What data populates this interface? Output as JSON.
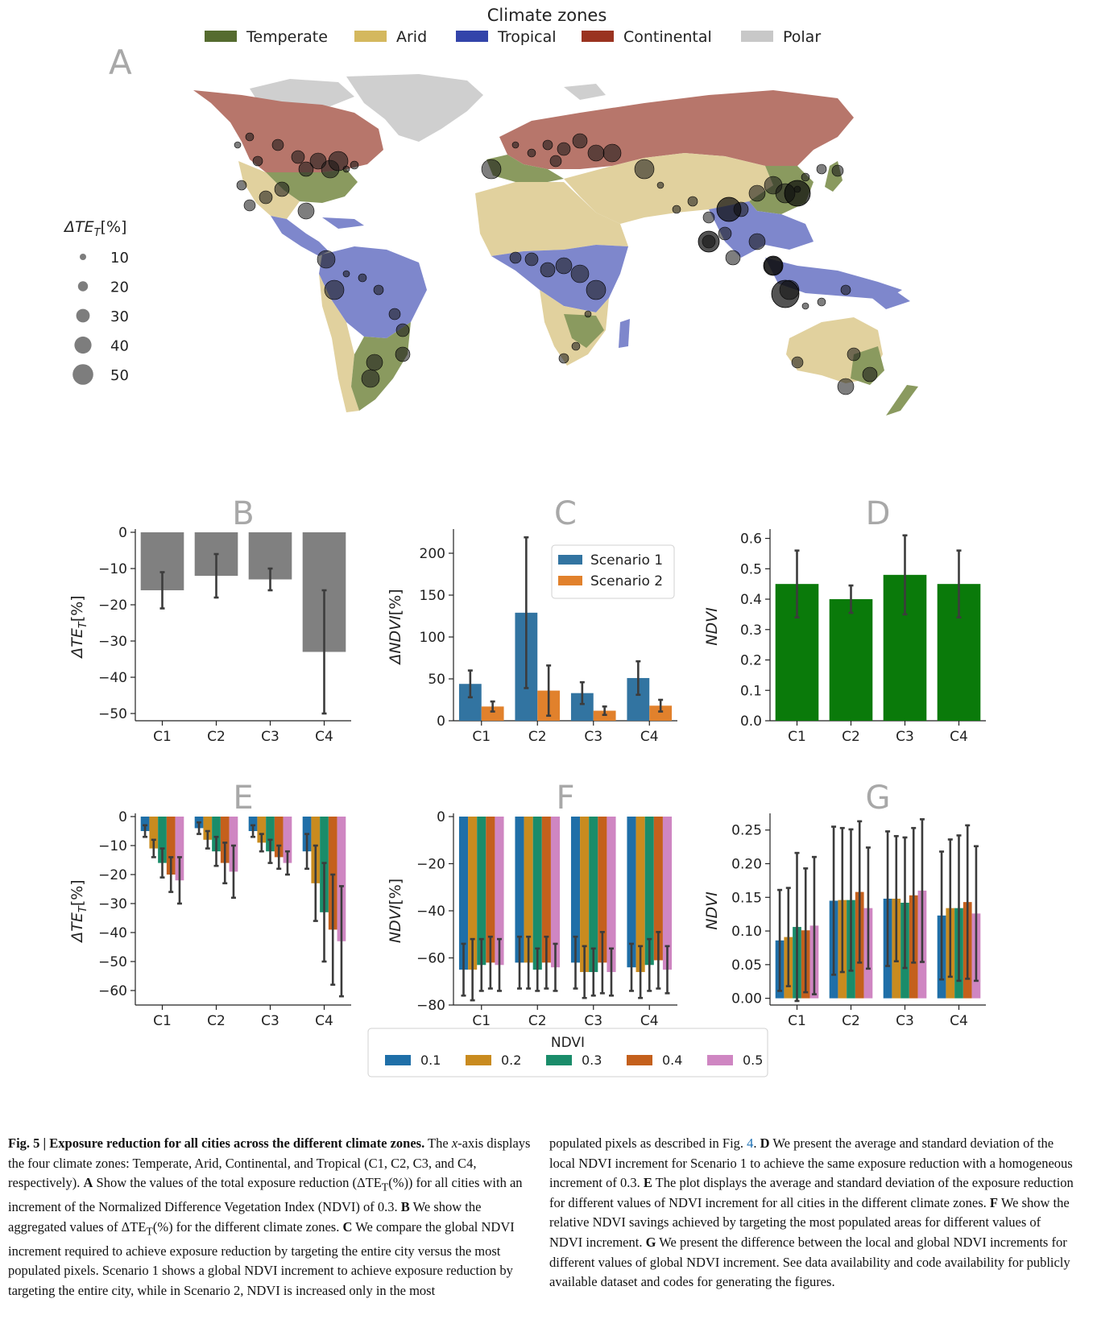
{
  "figure": {
    "map": {
      "panel_letter": "A",
      "legend_title": "Climate zones",
      "zones": [
        {
          "name": "Temperate",
          "color": "#556b2f"
        },
        {
          "name": "Arid",
          "color": "#d4b85e"
        },
        {
          "name": "Tropical",
          "color": "#3344aa"
        },
        {
          "name": "Continental",
          "color": "#9a3320"
        },
        {
          "name": "Polar",
          "color": "#c8c8c8"
        }
      ],
      "size_legend_title": "ΔTE",
      "size_legend_sub": "T",
      "size_legend_unit": "[%]",
      "size_legend_values": [
        10,
        20,
        30,
        40,
        50
      ]
    },
    "ndvi_legend": {
      "title": "NDVI",
      "items": [
        {
          "label": "0.1",
          "color": "#1f6fa8"
        },
        {
          "label": "0.2",
          "color": "#c98b1f"
        },
        {
          "label": "0.3",
          "color": "#1a8c6a"
        },
        {
          "label": "0.4",
          "color": "#c4601c"
        },
        {
          "label": "0.5",
          "color": "#cf86c2"
        }
      ]
    }
  },
  "chart_data": [
    {
      "id": "B",
      "type": "bar",
      "panel_letter": "B",
      "categories": [
        "C1",
        "C2",
        "C3",
        "C4"
      ],
      "ylabel": "ΔTE_T[%]",
      "ylim": [
        -52,
        0
      ],
      "yticks": [
        0,
        -10,
        -20,
        -30,
        -40,
        -50
      ],
      "series": [
        {
          "values": [
            -16,
            -12,
            -13,
            -33
          ],
          "err": [
            5,
            6,
            3,
            17
          ],
          "color": "#808080"
        }
      ]
    },
    {
      "id": "C",
      "type": "bar",
      "panel_letter": "C",
      "categories": [
        "C1",
        "C2",
        "C3",
        "C4"
      ],
      "ylabel": "ΔNDVI[%]",
      "ylim": [
        0,
        225
      ],
      "yticks": [
        0,
        50,
        100,
        150,
        200
      ],
      "legend": "top-right",
      "series": [
        {
          "name": "Scenario 1",
          "values": [
            44,
            129,
            33,
            51
          ],
          "err": [
            16,
            90,
            13,
            20
          ],
          "color": "#3274a1"
        },
        {
          "name": "Scenario 2",
          "values": [
            17,
            36,
            12,
            18
          ],
          "err": [
            6,
            30,
            5,
            7
          ],
          "color": "#e1812c"
        }
      ]
    },
    {
      "id": "D",
      "type": "bar",
      "panel_letter": "D",
      "categories": [
        "C1",
        "C2",
        "C3",
        "C4"
      ],
      "ylabel": "NDVI",
      "ylim": [
        0,
        0.62
      ],
      "yticks": [
        0.0,
        0.1,
        0.2,
        0.3,
        0.4,
        0.5,
        0.6
      ],
      "series": [
        {
          "values": [
            0.45,
            0.4,
            0.48,
            0.45
          ],
          "err": [
            0.11,
            0.045,
            0.13,
            0.11
          ],
          "color": "#0a7a0a"
        }
      ]
    },
    {
      "id": "E",
      "type": "bar",
      "panel_letter": "E",
      "categories": [
        "C1",
        "C2",
        "C3",
        "C4"
      ],
      "ylabel": "ΔTE_T[%]",
      "ylim": [
        -65,
        0
      ],
      "yticks": [
        0,
        -10,
        -20,
        -30,
        -40,
        -50,
        -60
      ],
      "series": [
        {
          "name": "0.1",
          "values": [
            -5,
            -4,
            -5,
            -12
          ],
          "err": [
            2,
            2,
            2,
            6
          ],
          "color": "#1f6fa8"
        },
        {
          "name": "0.2",
          "values": [
            -11,
            -8,
            -9,
            -23
          ],
          "err": [
            3,
            3,
            3,
            13
          ],
          "color": "#c98b1f"
        },
        {
          "name": "0.3",
          "values": [
            -16,
            -12,
            -12,
            -33
          ],
          "err": [
            5,
            5,
            4,
            17
          ],
          "color": "#1a8c6a"
        },
        {
          "name": "0.4",
          "values": [
            -20,
            -16,
            -14,
            -39
          ],
          "err": [
            6,
            7,
            4,
            19
          ],
          "color": "#c4601c"
        },
        {
          "name": "0.5",
          "values": [
            -22,
            -19,
            -16,
            -43
          ],
          "err": [
            8,
            9,
            4,
            19
          ],
          "color": "#cf86c2"
        }
      ]
    },
    {
      "id": "F",
      "type": "bar",
      "panel_letter": "F",
      "categories": [
        "C1",
        "C2",
        "C3",
        "C4"
      ],
      "ylabel": "NDVI[%]",
      "ylim": [
        -80,
        0
      ],
      "yticks": [
        0,
        -20,
        -40,
        -60,
        -80
      ],
      "series": [
        {
          "name": "0.1",
          "values": [
            -65,
            -62,
            -62,
            -64
          ],
          "err": [
            11,
            11,
            11,
            10
          ],
          "color": "#1f6fa8"
        },
        {
          "name": "0.2",
          "values": [
            -65,
            -62,
            -66,
            -66
          ],
          "err": [
            13,
            11,
            11,
            11
          ],
          "color": "#c98b1f"
        },
        {
          "name": "0.3",
          "values": [
            -63,
            -65,
            -66,
            -63
          ],
          "err": [
            11,
            9,
            10,
            11
          ],
          "color": "#1a8c6a"
        },
        {
          "name": "0.4",
          "values": [
            -62,
            -62,
            -62,
            -61
          ],
          "err": [
            11,
            11,
            13,
            12
          ],
          "color": "#c4601c"
        },
        {
          "name": "0.5",
          "values": [
            -63,
            -64,
            -66,
            -65
          ],
          "err": [
            11,
            10,
            10,
            10
          ],
          "color": "#cf86c2"
        }
      ]
    },
    {
      "id": "G",
      "type": "bar",
      "panel_letter": "G",
      "categories": [
        "C1",
        "C2",
        "C3",
        "C4"
      ],
      "ylabel": "NDVI",
      "ylim": [
        -0.01,
        0.27
      ],
      "yticks": [
        0.0,
        0.05,
        0.1,
        0.15,
        0.2,
        0.25
      ],
      "series": [
        {
          "name": "0.1",
          "values": [
            0.086,
            0.145,
            0.148,
            0.123
          ],
          "err": [
            0.075,
            0.11,
            0.1,
            0.095
          ],
          "color": "#1f6fa8"
        },
        {
          "name": "0.2",
          "values": [
            0.091,
            0.146,
            0.148,
            0.134
          ],
          "err": [
            0.073,
            0.107,
            0.093,
            0.102
          ],
          "color": "#c98b1f"
        },
        {
          "name": "0.3",
          "values": [
            0.106,
            0.146,
            0.142,
            0.134
          ],
          "err": [
            0.11,
            0.105,
            0.097,
            0.108
          ],
          "color": "#1a8c6a"
        },
        {
          "name": "0.4",
          "values": [
            0.101,
            0.158,
            0.153,
            0.143
          ],
          "err": [
            0.092,
            0.105,
            0.1,
            0.114
          ],
          "color": "#c4601c"
        },
        {
          "name": "0.5",
          "values": [
            0.108,
            0.134,
            0.16,
            0.126
          ],
          "err": [
            0.102,
            0.09,
            0.106,
            0.1
          ],
          "color": "#cf86c2"
        }
      ]
    }
  ],
  "caption": {
    "fig_label": "Fig. 5 | Exposure reduction for all cities across the different climate zones.",
    "left_1": " The ",
    "xaxis_word": "x",
    "left_2": "-axis displays the four climate zones: Temperate, Arid, Continental, and Tropical (C1, C2, C3, and C4, respectively). ",
    "A": "A",
    "left_3": " Show the values of the total exposure reduction (ΔTE",
    "left_3_sub": "T",
    "left_4": "(%)) for all cities with an increment of the Normalized Difference Vegetation Index (NDVI) of 0.3. ",
    "B": "B",
    "left_5": " We show the aggregated values of ΔTE",
    "left_5_sub": "T",
    "left_6": "(%) for the different climate zones. ",
    "C": "C",
    "left_7": " We compare the global NDVI increment required to achieve exposure reduction by targeting the entire city versus the most populated pixels. Scenario 1 shows a global NDVI increment to achieve exposure reduction by targeting the entire city, while in Scenario 2, NDVI is increased only in the most",
    "right_1": "populated pixels as described in Fig. ",
    "fig_ref": "4",
    "right_2": ". ",
    "D": "D",
    "right_3": " We present the average and standard deviation of the local NDVI increment for Scenario 1 to achieve the same exposure reduction with a homogeneous increment of 0.3. ",
    "E": "E",
    "right_4": " The plot displays the average and standard deviation of the exposure reduction for different values of NDVI increment for all cities in the different climate zones. ",
    "F": "F",
    "right_5": " We show the relative NDVI savings achieved by targeting the most populated areas for different values of NDVI increment. ",
    "G": "G",
    "right_6": " We present the difference between the local and global NDVI increments for different values of global NDVI increment. See data availability and code availability for publicly available dataset and codes for generating the figures."
  }
}
